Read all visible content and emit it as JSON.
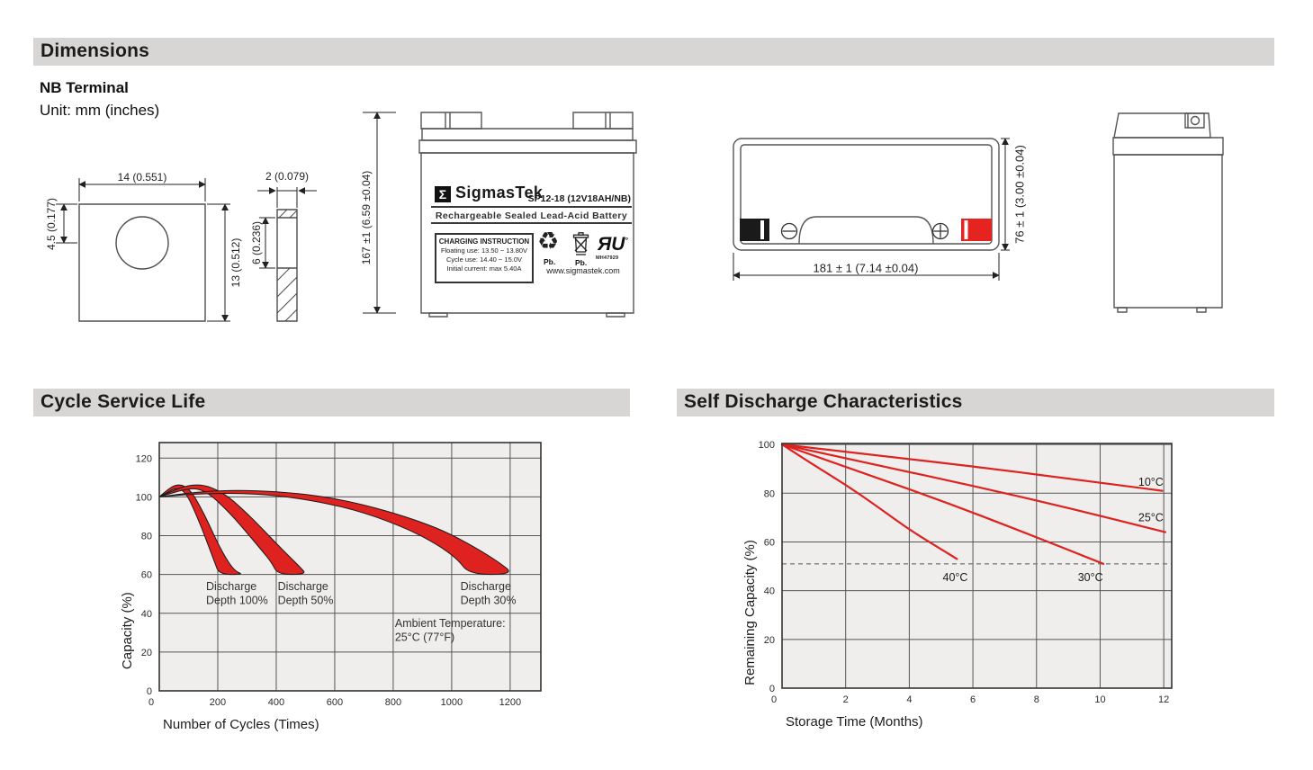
{
  "colors": {
    "header_bg": "#d7d6d4",
    "red": "#dd2220",
    "terminal_red": "#e52421",
    "plot_bg": "#efeeec",
    "grid": "#555555",
    "border": "#333333",
    "outline": "#555555"
  },
  "header": {
    "dimensions": "Dimensions",
    "cycle": "Cycle Service Life",
    "self_discharge": "Self Discharge Characteristics"
  },
  "dimensions_section": {
    "terminal_type": "NB Terminal",
    "unit": "Unit: mm (inches)",
    "terminal_detail": {
      "width": "14 (0.551)",
      "height": "13 (0.512)",
      "hole_offset": "4.5 (0.177)",
      "thickness": "2 (0.079)",
      "slot_height": "6 (0.236)"
    },
    "front_view": {
      "height": "167 ±1 (6.59 ±0.04)",
      "label": {
        "logo_glyph": "Σ",
        "brand": "SigmasTek",
        "model": "SP12-18 (12V18AH/NB)",
        "subtitle": "Rechargeable Sealed Lead-Acid Battery",
        "charging_title": "CHARGING INSTRUCTION",
        "charging_lines": [
          "Floating use: 13.50 ~ 13.80V",
          "Cycle use: 14.40 ~ 15.0V",
          "Initial current: max 5.40A"
        ],
        "recycle_caption": "Pb.",
        "bin_caption": "Pb.",
        "ul_glyph": "ЯU",
        "ul_degree": "°",
        "ul_code": "MH47929",
        "website": "www.sigmastek.com"
      }
    },
    "top_view": {
      "width": "181 ± 1 (7.14 ±0.04)",
      "depth": "76 ± 1 (3.00 ±0.04)"
    }
  },
  "chart_data": [
    {
      "type": "area",
      "title": "Cycle Service Life",
      "xlabel": "Number of Cycles (Times)",
      "ylabel": "Capacity (%)",
      "xlim": [
        0,
        1305
      ],
      "ylim": [
        0,
        128
      ],
      "xticks": [
        0,
        200,
        400,
        600,
        800,
        1000,
        1200
      ],
      "yticks": [
        0,
        20,
        40,
        60,
        80,
        100,
        120
      ],
      "grid": true,
      "legend_position": "none",
      "bands": [
        {
          "name": "Discharge Depth 100%",
          "upper": [
            [
              0,
              100
            ],
            [
              30,
              104
            ],
            [
              60,
              106.5
            ],
            [
              90,
              105.5
            ],
            [
              115,
              101.5
            ],
            [
              140,
              95
            ],
            [
              170,
              86
            ],
            [
              200,
              76
            ],
            [
              235,
              66.5
            ],
            [
              262,
              61.5
            ],
            [
              288,
              60
            ]
          ],
          "lower": [
            [
              0,
              100
            ],
            [
              30,
              102.5
            ],
            [
              55,
              104.5
            ],
            [
              80,
              103.5
            ],
            [
              100,
              99.5
            ],
            [
              120,
              93
            ],
            [
              145,
              84
            ],
            [
              170,
              74
            ],
            [
              190,
              66
            ],
            [
              205,
              60
            ]
          ]
        },
        {
          "name": "Discharge Depth 50%",
          "upper": [
            [
              0,
              100
            ],
            [
              50,
              103.5
            ],
            [
              100,
              106
            ],
            [
              150,
              106.3
            ],
            [
              200,
              103.5
            ],
            [
              250,
              98.5
            ],
            [
              300,
              91.5
            ],
            [
              350,
              84
            ],
            [
              400,
              76
            ],
            [
              450,
              68.5
            ],
            [
              480,
              64
            ],
            [
              505,
              60
            ]
          ],
          "lower": [
            [
              0,
              100
            ],
            [
              45,
              102
            ],
            [
              90,
              104
            ],
            [
              135,
              104.3
            ],
            [
              175,
              101
            ],
            [
              215,
              95.5
            ],
            [
              260,
              88.5
            ],
            [
              305,
              80.5
            ],
            [
              350,
              72.5
            ],
            [
              385,
              66
            ],
            [
              405,
              60
            ]
          ]
        },
        {
          "name": "Discharge Depth 30%",
          "upper": [
            [
              0,
              100
            ],
            [
              120,
              102.5
            ],
            [
              260,
              103.5
            ],
            [
              400,
              102.8
            ],
            [
              550,
              100.5
            ],
            [
              700,
              96
            ],
            [
              850,
              89.5
            ],
            [
              975,
              82.5
            ],
            [
              1080,
              74
            ],
            [
              1160,
              66.5
            ],
            [
              1215,
              60
            ]
          ],
          "lower": [
            [
              0,
              100
            ],
            [
              120,
              101.5
            ],
            [
              260,
              102
            ],
            [
              400,
              100.8
            ],
            [
              550,
              97.5
            ],
            [
              700,
              92
            ],
            [
              850,
              83.5
            ],
            [
              950,
              75.5
            ],
            [
              1020,
              68
            ],
            [
              1060,
              60
            ]
          ]
        }
      ],
      "annotations": [
        {
          "lines": [
            "Discharge",
            "Depth 100%"
          ],
          "x": 160,
          "y": 52
        },
        {
          "lines": [
            "Discharge",
            "Depth 50%"
          ],
          "x": 405,
          "y": 52
        },
        {
          "lines": [
            "Discharge",
            "Depth 30%"
          ],
          "x": 1030,
          "y": 52
        },
        {
          "lines": [
            "Ambient Temperature:",
            "25°C (77°F)"
          ],
          "x": 806,
          "y": 33
        }
      ]
    },
    {
      "type": "line",
      "title": "Self Discharge Characteristics",
      "xlabel": "Storage Time (Months)",
      "ylabel": "Remaining Capacity (%)",
      "xlim": [
        0,
        12.25
      ],
      "ylim": [
        0,
        100.4
      ],
      "xticks": [
        0,
        2,
        4,
        6,
        8,
        10,
        12
      ],
      "yticks": [
        0,
        20,
        40,
        60,
        80,
        100
      ],
      "grid": true,
      "dashed_line_y": 51,
      "legend_position": "inline",
      "series": [
        {
          "name": "10°C",
          "points": [
            [
              0,
              100
            ],
            [
              3,
              95.5
            ],
            [
              6,
              91
            ],
            [
              9,
              86
            ],
            [
              11.95,
              81
            ]
          ],
          "label_x": 11.2,
          "label_y": 83
        },
        {
          "name": "25°C",
          "points": [
            [
              0,
              100
            ],
            [
              3,
              91.5
            ],
            [
              6,
              83
            ],
            [
              9,
              74
            ],
            [
              12.05,
              64
            ]
          ],
          "label_x": 11.2,
          "label_y": 68.5
        },
        {
          "name": "30°C",
          "points": [
            [
              0,
              100
            ],
            [
              2.5,
              88.5
            ],
            [
              5,
              77
            ],
            [
              7.5,
              64.5
            ],
            [
              10.1,
              51
            ]
          ],
          "label_x": 9.3,
          "label_y": 44
        },
        {
          "name": "40°C",
          "points": [
            [
              0,
              100
            ],
            [
              1,
              91.5
            ],
            [
              2,
              83.5
            ],
            [
              3,
              74.5
            ],
            [
              4,
              65
            ],
            [
              5,
              57
            ],
            [
              5.5,
              53
            ]
          ],
          "label_x": 5.05,
          "label_y": 44
        }
      ]
    }
  ]
}
